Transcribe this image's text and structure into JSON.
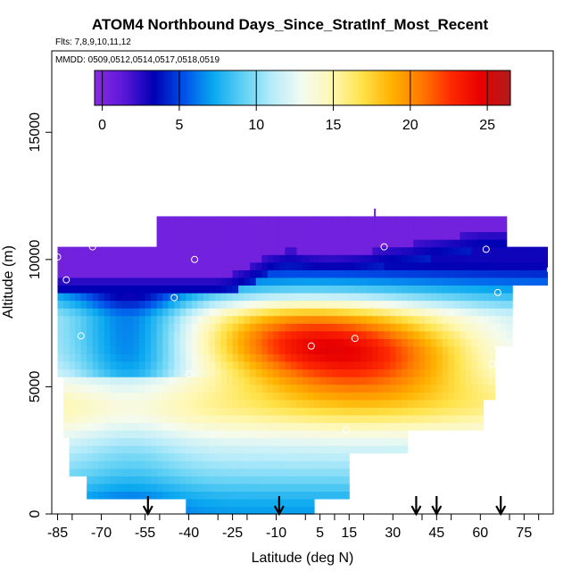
{
  "chart_data": {
    "type": "heatmap",
    "title": "ATOM4 Northbound Days_Since_StratInf_Most_Recent",
    "flights_label": "Flts: 7,8,9,10,11,12",
    "dates_label": "MMDD: 0509,0512,0514,0517,0518,0519",
    "xlabel": "Latitude (deg N)",
    "ylabel": "Altitude (m)",
    "xlim": [
      -87,
      85
    ],
    "ylim": [
      0,
      18200
    ],
    "x_ticks": [
      -85,
      -70,
      -55,
      -40,
      -25,
      -10,
      5,
      15,
      30,
      45,
      60,
      75
    ],
    "y_ticks": [
      0,
      5000,
      10000,
      15000
    ],
    "colorbar": {
      "min": -0.5,
      "max": 26.5,
      "ticks": [
        0,
        5,
        10,
        15,
        20,
        25
      ],
      "colors": [
        "#8b2be2",
        "#5a17d8",
        "#0000b4",
        "#0050ea",
        "#0aa8f0",
        "#60d0f4",
        "#b8ecfa",
        "#f4fbf0",
        "#fff7b0",
        "#ffe34a",
        "#ffb200",
        "#ff7a00",
        "#ff2a00",
        "#e80000",
        "#b01c1c"
      ]
    },
    "arrows_latitude": [
      -54,
      -9,
      38,
      45,
      67
    ],
    "grid": false
  }
}
